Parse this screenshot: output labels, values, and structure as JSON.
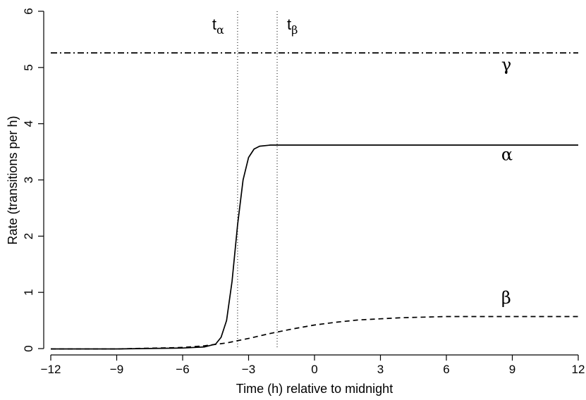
{
  "chart_data": {
    "type": "line",
    "title": "",
    "xlabel": "Time (h) relative to midnight",
    "ylabel": "Rate (transitions per h)",
    "xlim": [
      -12,
      12
    ],
    "ylim": [
      0,
      6
    ],
    "x_ticks": [
      -12,
      -9,
      -6,
      -3,
      0,
      3,
      6,
      9,
      12
    ],
    "x_tick_labels": [
      "−12",
      "−9",
      "−6",
      "−3",
      "0",
      "3",
      "6",
      "9",
      "12"
    ],
    "y_ticks": [
      0,
      1,
      2,
      3,
      4,
      5,
      6
    ],
    "y_tick_labels": [
      "0",
      "1",
      "2",
      "3",
      "4",
      "5",
      "6"
    ],
    "grid": false,
    "legend": "none",
    "series": [
      {
        "name": "α",
        "style": "solid",
        "x": [
          -12,
          -9,
          -6,
          -5,
          -4.5,
          -4.25,
          -4,
          -3.75,
          -3.5,
          -3.25,
          -3,
          -2.75,
          -2.5,
          -2,
          -1.5,
          0,
          3,
          6,
          9,
          12
        ],
        "y": [
          0,
          0,
          0.01,
          0.03,
          0.08,
          0.2,
          0.5,
          1.2,
          2.2,
          3.0,
          3.4,
          3.55,
          3.6,
          3.62,
          3.62,
          3.62,
          3.62,
          3.62,
          3.62,
          3.62
        ]
      },
      {
        "name": "β",
        "style": "dashed",
        "x": [
          -12,
          -9,
          -6,
          -5,
          -4,
          -3,
          -2,
          -1,
          0,
          1,
          2,
          3,
          4,
          5,
          6,
          9,
          12
        ],
        "y": [
          0,
          0,
          0.02,
          0.05,
          0.1,
          0.18,
          0.27,
          0.35,
          0.42,
          0.47,
          0.51,
          0.53,
          0.55,
          0.56,
          0.57,
          0.57,
          0.57
        ]
      },
      {
        "name": "γ",
        "style": "dotdash",
        "x": [
          -12,
          12
        ],
        "y": [
          5.26,
          5.26
        ]
      }
    ],
    "series_labels": [
      {
        "text": "γ",
        "x": 8.5,
        "y": 4.95
      },
      {
        "text": "α",
        "x": 8.5,
        "y": 3.35
      },
      {
        "text": "β",
        "x": 8.5,
        "y": 0.8
      }
    ],
    "vertical_lines": [
      {
        "x": -3.5,
        "style": "dotted",
        "label_base": "t",
        "label_sub": "α"
      },
      {
        "x": -1.7,
        "style": "dotted",
        "label_base": "t",
        "label_sub": "β"
      }
    ]
  }
}
